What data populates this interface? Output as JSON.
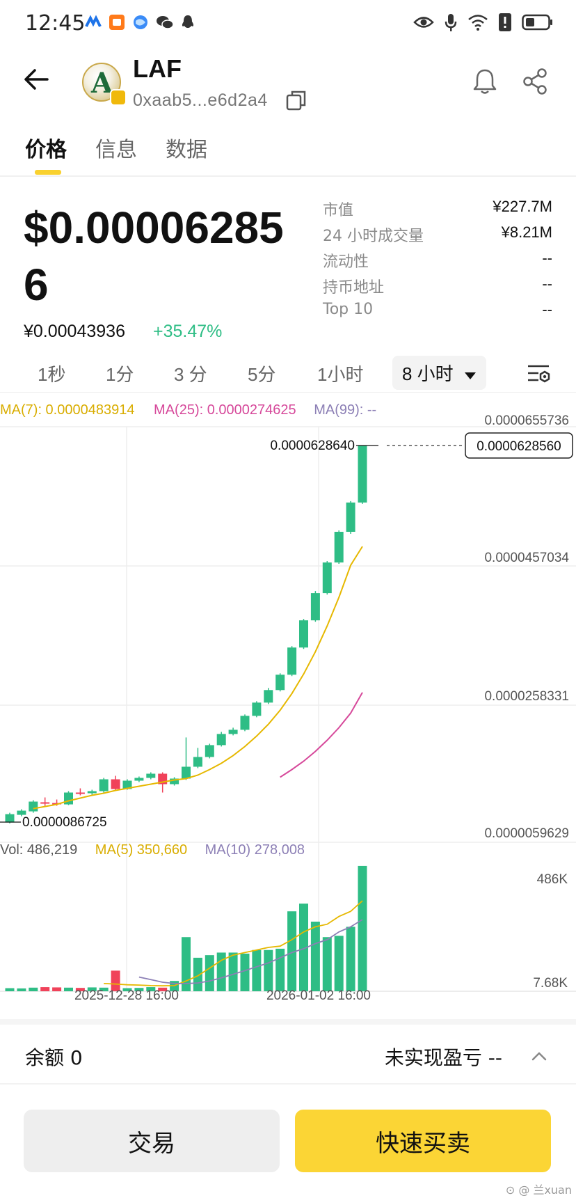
{
  "status_bar": {
    "time": "12:45"
  },
  "header": {
    "token_name": "LAF",
    "address": "0xaab5...e6d2a4",
    "logo_letter": "A"
  },
  "tabs": [
    {
      "label": "价格"
    },
    {
      "label": "信息"
    },
    {
      "label": "数据"
    }
  ],
  "price": {
    "usd": "$0.000062856",
    "cny": "¥0.00043936",
    "change": "+35.47%"
  },
  "stats": [
    {
      "label": "市值",
      "value": "¥227.7M"
    },
    {
      "label": "24 小时成交量",
      "value": "¥8.21M"
    },
    {
      "label": "流动性",
      "value": "--"
    },
    {
      "label": "持币地址",
      "value": "--"
    },
    {
      "label": "Top 10",
      "value": "--"
    }
  ],
  "intervals": [
    "1秒",
    "1分",
    "3 分",
    "5分",
    "1小时",
    "8 小时"
  ],
  "active_interval": "8 小时",
  "ma_legend": {
    "ma7": "MA(7): 0.0000483914",
    "ma25": "MA(25): 0.0000274625",
    "ma99": "MA(99): --"
  },
  "vol_legend": {
    "vol": "Vol: 486,219",
    "ma5": "MA(5) 350,660",
    "ma10": "MA(10) 278,008"
  },
  "chart_data": {
    "type": "candlestick",
    "price_axis_labels": [
      "0.0000655736",
      "0.0000457034",
      "0.0000258331",
      "0.0000059629"
    ],
    "ylim": [
      5.9629e-06,
      6.55736e-05
    ],
    "high_marker": "0.0000628640",
    "low_marker": "0.0000086725",
    "current_price_label": "0.0000628560",
    "time_labels": [
      "2025-12-28 16:00",
      "2026-01-02 16:00"
    ],
    "volume_axis_labels": [
      "486K",
      "7.68K"
    ],
    "volume_max": 486000,
    "candles": [
      {
        "o": 8.8e-06,
        "c": 1e-05,
        "h": 1.02e-05,
        "l": 8.6725e-06
      },
      {
        "o": 9.9e-06,
        "c": 1.05e-05,
        "h": 1.07e-05,
        "l": 9.7e-06
      },
      {
        "o": 1.04e-05,
        "c": 1.18e-05,
        "h": 1.2e-05,
        "l": 1.02e-05
      },
      {
        "o": 1.17e-05,
        "c": 1.16e-05,
        "h": 1.24e-05,
        "l": 1.11e-05
      },
      {
        "o": 1.16e-05,
        "c": 1.15e-05,
        "h": 1.21e-05,
        "l": 1.12e-05
      },
      {
        "o": 1.14e-05,
        "c": 1.31e-05,
        "h": 1.33e-05,
        "l": 1.13e-05
      },
      {
        "o": 1.31e-05,
        "c": 1.3e-05,
        "h": 1.37e-05,
        "l": 1.27e-05
      },
      {
        "o": 1.3e-05,
        "c": 1.33e-05,
        "h": 1.35e-05,
        "l": 1.28e-05
      },
      {
        "o": 1.33e-05,
        "c": 1.5e-05,
        "h": 1.52e-05,
        "l": 1.31e-05
      },
      {
        "o": 1.5e-05,
        "c": 1.36e-05,
        "h": 1.55e-05,
        "l": 1.34e-05
      },
      {
        "o": 1.36e-05,
        "c": 1.48e-05,
        "h": 1.5e-05,
        "l": 1.35e-05
      },
      {
        "o": 1.48e-05,
        "c": 1.52e-05,
        "h": 1.54e-05,
        "l": 1.46e-05
      },
      {
        "o": 1.52e-05,
        "c": 1.58e-05,
        "h": 1.6e-05,
        "l": 1.5e-05
      },
      {
        "o": 1.58e-05,
        "c": 1.43e-05,
        "h": 1.6e-05,
        "l": 1.31e-05
      },
      {
        "o": 1.43e-05,
        "c": 1.51e-05,
        "h": 1.53e-05,
        "l": 1.41e-05
      },
      {
        "o": 1.51e-05,
        "c": 1.68e-05,
        "h": 2.1e-05,
        "l": 1.49e-05
      },
      {
        "o": 1.68e-05,
        "c": 1.82e-05,
        "h": 1.95e-05,
        "l": 1.66e-05
      },
      {
        "o": 1.82e-05,
        "c": 1.99e-05,
        "h": 2.01e-05,
        "l": 1.8e-05
      },
      {
        "o": 1.99e-05,
        "c": 2.15e-05,
        "h": 2.18e-05,
        "l": 1.97e-05
      },
      {
        "o": 2.15e-05,
        "c": 2.21e-05,
        "h": 2.24e-05,
        "l": 2.13e-05
      },
      {
        "o": 2.21e-05,
        "c": 2.41e-05,
        "h": 2.43e-05,
        "l": 2.19e-05
      },
      {
        "o": 2.41e-05,
        "c": 2.6e-05,
        "h": 2.62e-05,
        "l": 2.39e-05
      },
      {
        "o": 2.6e-05,
        "c": 2.78e-05,
        "h": 2.81e-05,
        "l": 2.58e-05
      },
      {
        "o": 2.78e-05,
        "c": 3e-05,
        "h": 3.02e-05,
        "l": 2.76e-05
      },
      {
        "o": 3e-05,
        "c": 3.39e-05,
        "h": 3.41e-05,
        "l": 2.98e-05
      },
      {
        "o": 3.39e-05,
        "c": 3.78e-05,
        "h": 3.8e-05,
        "l": 3.37e-05
      },
      {
        "o": 3.78e-05,
        "c": 4.17e-05,
        "h": 4.2e-05,
        "l": 3.76e-05
      },
      {
        "o": 4.17e-05,
        "c": 4.61e-05,
        "h": 4.63e-05,
        "l": 4.15e-05
      },
      {
        "o": 4.61e-05,
        "c": 5.05e-05,
        "h": 5.07e-05,
        "l": 4.59e-05
      },
      {
        "o": 5.05e-05,
        "c": 5.47e-05,
        "h": 5.49e-05,
        "l": 5.02e-05
      },
      {
        "o": 5.47e-05,
        "c": 6.2856e-05,
        "h": 6.2864e-05,
        "l": 5.45e-05
      }
    ],
    "ma7": [
      1.08e-05,
      1.11e-05,
      1.14e-05,
      1.19e-05,
      1.23e-05,
      1.27e-05,
      1.3e-05,
      1.34e-05,
      1.37e-05,
      1.4e-05,
      1.43e-05,
      1.46e-05,
      1.49e-05,
      1.51e-05,
      1.56e-05,
      1.64e-05,
      1.73e-05,
      1.84e-05,
      1.97e-05,
      2.12e-05,
      2.29e-05,
      2.49e-05,
      2.73e-05,
      3.01e-05,
      3.33e-05,
      3.7e-05,
      4.11e-05,
      4.57e-05,
      4.84e-05
    ],
    "ma7_start": 2,
    "ma25": [
      1.53e-05,
      1.64e-05,
      1.76e-05,
      1.9e-05,
      2.06e-05,
      2.24e-05,
      2.45e-05,
      2.74625e-05
    ],
    "ma25_start": 23,
    "volumes": [
      12000,
      11000,
      14000,
      16000,
      15000,
      14000,
      13000,
      15000,
      14000,
      80000,
      12000,
      13000,
      16000,
      14000,
      40000,
      210000,
      130000,
      140000,
      150000,
      150000,
      146000,
      160000,
      160000,
      165000,
      310000,
      340000,
      270000,
      210000,
      215000,
      250000,
      486219
    ],
    "up": [
      true,
      true,
      true,
      false,
      false,
      true,
      false,
      true,
      true,
      false,
      true,
      true,
      true,
      false,
      true,
      true,
      true,
      true,
      true,
      true,
      true,
      true,
      true,
      true,
      true,
      true,
      true,
      true,
      true,
      true,
      true
    ],
    "vol_ma5": [
      30000,
      28000,
      25000,
      24000,
      22000,
      21000,
      22000,
      40000,
      60000,
      90000,
      120000,
      140000,
      150000,
      160000,
      170000,
      175000,
      200000,
      230000,
      250000,
      260000,
      290000,
      310000,
      350660
    ],
    "vol_ma5_start": 8,
    "vol_ma10": [
      55000,
      45000,
      35000,
      30000,
      30000,
      32000,
      40000,
      52000,
      66000,
      80000,
      95000,
      110000,
      130000,
      150000,
      165000,
      185000,
      200000,
      230000,
      250000,
      278008
    ],
    "vol_ma10_start": 11
  },
  "bottom": {
    "balance": "余额 0",
    "pnl": "未实现盈亏 --",
    "trade_button": "交易",
    "quick_button": "快速买卖"
  },
  "watermark": "⊙ @ 兰xuan",
  "colors": {
    "up": "#2ebd85",
    "down": "#f0425a",
    "ma7": "#e6b800",
    "ma25": "#d6489a",
    "ma99": "#8c7fb5",
    "accent": "#fbd535"
  }
}
